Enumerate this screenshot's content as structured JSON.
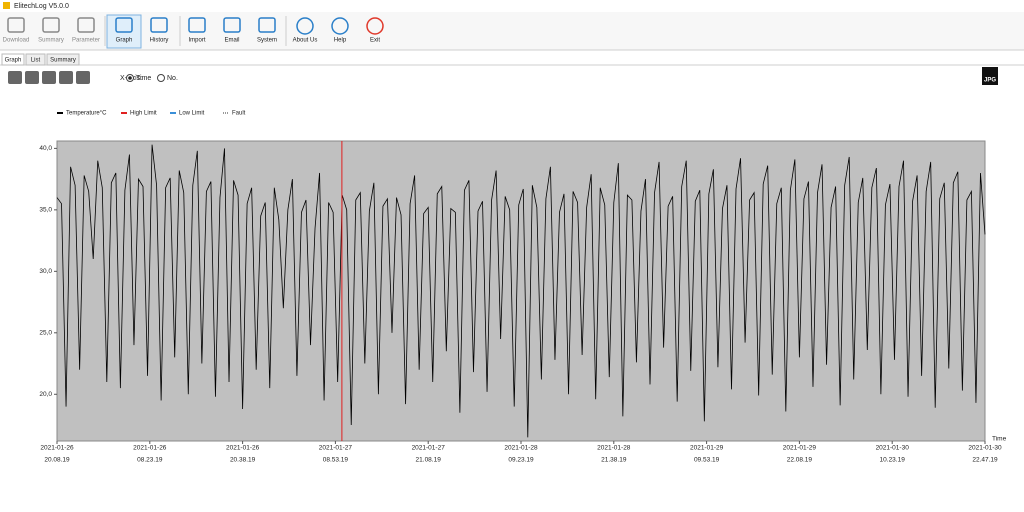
{
  "window": {
    "title": "ElitechLog V5.0.0"
  },
  "toolbar": [
    "Download",
    "Summary",
    "Parameter",
    "Graph",
    "History",
    "Import",
    "Email",
    "System",
    "About Us",
    "Help",
    "Exit"
  ],
  "tabs": [
    "Graph",
    "List",
    "Summary"
  ],
  "controls": {
    "x_axis_label": "X-Axis:",
    "options": [
      "Time",
      "No."
    ],
    "export": "JPG"
  },
  "chart_data": {
    "type": "line",
    "x_axis_label": "Time",
    "legend": [
      {
        "name": "Temperature°C",
        "color": "#000000",
        "style": "solid"
      },
      {
        "name": "High Limit",
        "color": "#e02020",
        "style": "solid"
      },
      {
        "name": "Low Limit",
        "color": "#3a8fd8",
        "style": "solid"
      },
      {
        "name": "Fault",
        "color": "#999999",
        "style": "dotted"
      }
    ],
    "series": [
      {
        "name": "Temperature°C",
        "color": "#000000",
        "values": [
          36.0,
          35.5,
          19.0,
          38.5,
          37.0,
          22.0,
          37.8,
          36.5,
          31.0,
          39.0,
          36.8,
          21.0,
          37.2,
          38.0,
          20.5,
          36.6,
          39.5,
          24.0,
          37.5,
          36.9,
          21.5,
          40.3,
          37.0,
          19.5,
          36.8,
          37.6,
          23.0,
          38.2,
          36.4,
          20.0,
          37.0,
          39.8,
          22.5,
          36.5,
          37.3,
          19.8,
          36.0,
          40.0,
          21.0,
          37.4,
          36.2,
          18.8,
          35.5,
          36.8,
          22.0,
          34.5,
          35.6,
          20.5,
          36.8,
          34.2,
          27.0,
          35.0,
          37.5,
          21.5,
          34.8,
          35.8,
          24.0,
          33.5,
          38.0,
          19.5,
          35.6,
          34.8,
          21.0,
          36.2,
          35.0,
          17.5,
          35.8,
          36.4,
          22.5,
          34.9,
          37.2,
          20.0,
          35.3,
          35.9,
          25.0,
          36.0,
          34.6,
          19.2,
          35.5,
          37.8,
          22.0,
          34.7,
          35.2,
          21.0,
          36.3,
          36.9,
          23.5,
          35.1,
          34.8,
          18.5,
          36.6,
          37.4,
          21.8,
          34.9,
          35.7,
          20.2,
          35.8,
          38.2,
          24.5,
          36.1,
          35.0,
          19.0,
          35.4,
          36.7,
          16.5,
          37.0,
          35.2,
          21.2,
          35.9,
          38.5,
          22.8,
          34.8,
          36.3,
          20.0,
          36.5,
          35.6,
          23.2,
          35.2,
          37.9,
          19.6,
          36.8,
          35.4,
          21.4,
          35.6,
          38.8,
          18.2,
          36.2,
          35.8,
          22.6,
          34.9,
          37.5,
          20.8,
          36.4,
          38.9,
          23.8,
          35.3,
          36.1,
          19.4,
          36.9,
          39.0,
          21.9,
          35.7,
          36.6,
          17.8,
          36.3,
          38.3,
          22.2,
          35.1,
          37.0,
          20.4,
          36.7,
          39.2,
          24.2,
          35.8,
          36.4,
          19.9,
          37.1,
          38.6,
          21.6,
          35.5,
          36.8,
          18.6,
          36.6,
          39.1,
          23.0,
          35.9,
          37.3,
          20.6,
          36.4,
          38.7,
          22.4,
          35.2,
          36.9,
          19.1,
          37.0,
          39.3,
          21.2,
          35.6,
          37.6,
          23.6,
          36.8,
          38.4,
          20.0,
          35.4,
          37.1,
          22.8,
          36.9,
          39.0,
          19.8,
          35.7,
          37.8,
          21.5,
          36.5,
          38.9,
          18.9,
          35.9,
          37.2,
          22.1,
          37.2,
          38.1,
          20.3,
          35.8,
          36.5,
          19.3,
          38.0,
          33.0
        ]
      }
    ],
    "cursor_x": 3.07,
    "cursor_color": "#e02020",
    "ylim": [
      16.2,
      40.6
    ],
    "yticks": [
      {
        "value": 20,
        "label": "20,0"
      },
      {
        "value": 25,
        "label": "25,0"
      },
      {
        "value": 30,
        "label": "30,0"
      },
      {
        "value": 35,
        "label": "35,0"
      },
      {
        "value": 40,
        "label": "40,0"
      }
    ],
    "xlim": [
      0,
      10
    ],
    "xticks": [
      {
        "value": 0,
        "label": "2021-01-26",
        "time": "20.08.19"
      },
      {
        "value": 1,
        "label": "2021-01-26",
        "time": "08.23.19"
      },
      {
        "value": 2,
        "label": "2021-01-26",
        "time": "20.38.19"
      },
      {
        "value": 3,
        "label": "2021-01-27",
        "time": "08.53.19"
      },
      {
        "value": 4,
        "label": "2021-01-27",
        "time": "21.08.19"
      },
      {
        "value": 5,
        "label": "2021-01-28",
        "time": "09.23.19"
      },
      {
        "value": 6,
        "label": "2021-01-28",
        "time": "21.38.19"
      },
      {
        "value": 7,
        "label": "2021-01-29",
        "time": "09.53.19"
      },
      {
        "value": 8,
        "label": "2021-01-29",
        "time": "22.08.19"
      },
      {
        "value": 9,
        "label": "2021-01-30",
        "time": "10.23.19"
      },
      {
        "value": 10,
        "label": "2021-01-30",
        "time": "22.47.19"
      }
    ],
    "plot_color": "#c0c0c0"
  }
}
